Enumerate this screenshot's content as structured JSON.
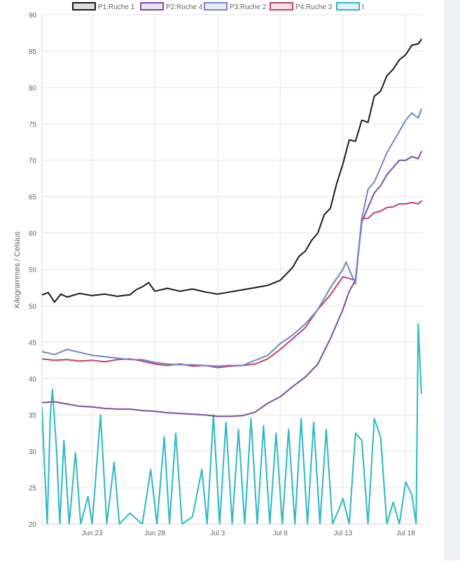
{
  "chart_data": {
    "type": "line",
    "title": "",
    "xlabel": "",
    "ylabel": "Kilogrammes  / Celsius",
    "ylim": [
      20,
      90
    ],
    "yticks": [
      20,
      25,
      30,
      35,
      40,
      45,
      50,
      55,
      60,
      65,
      70,
      75,
      80,
      85,
      90
    ],
    "xlim": [
      "2023-06-18",
      "2023-07-18T09:00"
    ],
    "xtick_labels": [
      {
        "date": "2023-06-22",
        "label": "Jun 23"
      },
      {
        "date": "2023-06-27",
        "label": "Jun 28"
      },
      {
        "date": "2023-07-02",
        "label": "Jul 3"
      },
      {
        "date": "2023-07-07",
        "label": "Jul 8"
      },
      {
        "date": "2023-07-12",
        "label": "Jul 13"
      },
      {
        "date": "2023-07-17",
        "label": "Jul 18"
      }
    ],
    "grid": true,
    "legend_position": "top",
    "series": [
      {
        "name": "P1:Ruche 1",
        "color": "#1a1a1a",
        "points": [
          [
            "2023-06-18",
            51.5
          ],
          [
            "2023-06-18T12:00",
            51.8
          ],
          [
            "2023-06-19",
            50.5
          ],
          [
            "2023-06-19T12:00",
            51.6
          ],
          [
            "2023-06-20",
            51.2
          ],
          [
            "2023-06-21",
            51.7
          ],
          [
            "2023-06-22",
            51.4
          ],
          [
            "2023-06-23",
            51.6
          ],
          [
            "2023-06-24",
            51.3
          ],
          [
            "2023-06-25",
            51.5
          ],
          [
            "2023-06-25T12:00",
            52.2
          ],
          [
            "2023-06-26",
            52.6
          ],
          [
            "2023-06-26T12:00",
            53.2
          ],
          [
            "2023-06-27",
            52.0
          ],
          [
            "2023-06-28",
            52.4
          ],
          [
            "2023-06-29",
            52.0
          ],
          [
            "2023-06-30",
            52.3
          ],
          [
            "2023-07-01",
            51.9
          ],
          [
            "2023-07-02",
            51.6
          ],
          [
            "2023-07-03",
            51.9
          ],
          [
            "2023-07-04",
            52.2
          ],
          [
            "2023-07-05",
            52.5
          ],
          [
            "2023-07-06",
            52.8
          ],
          [
            "2023-07-07",
            53.5
          ],
          [
            "2023-07-08",
            55.3
          ],
          [
            "2023-07-08T12:00",
            56.8
          ],
          [
            "2023-07-09",
            57.5
          ],
          [
            "2023-07-09T12:00",
            59.0
          ],
          [
            "2023-07-10",
            60.0
          ],
          [
            "2023-07-10T12:00",
            62.5
          ],
          [
            "2023-07-11",
            63.4
          ],
          [
            "2023-07-11T12:00",
            66.8
          ],
          [
            "2023-07-12",
            69.5
          ],
          [
            "2023-07-12T12:00",
            72.8
          ],
          [
            "2023-07-13",
            72.6
          ],
          [
            "2023-07-13T12:00",
            75.5
          ],
          [
            "2023-07-14",
            75.2
          ],
          [
            "2023-07-14T12:00",
            78.8
          ],
          [
            "2023-07-15",
            79.5
          ],
          [
            "2023-07-15T12:00",
            81.6
          ],
          [
            "2023-07-16",
            82.5
          ],
          [
            "2023-07-16T12:00",
            83.8
          ],
          [
            "2023-07-17",
            84.5
          ],
          [
            "2023-07-17T12:00",
            85.8
          ],
          [
            "2023-07-18",
            86.0
          ],
          [
            "2023-07-18T06:00",
            86.6
          ]
        ]
      },
      {
        "name": "P2:Ruche 4",
        "color": "#7b4ea6",
        "points": [
          [
            "2023-06-18",
            36.7
          ],
          [
            "2023-06-19",
            36.8
          ],
          [
            "2023-06-20",
            36.5
          ],
          [
            "2023-06-21",
            36.2
          ],
          [
            "2023-06-22",
            36.1
          ],
          [
            "2023-06-23",
            35.9
          ],
          [
            "2023-06-24",
            35.8
          ],
          [
            "2023-06-25",
            35.8
          ],
          [
            "2023-06-26",
            35.6
          ],
          [
            "2023-06-27",
            35.5
          ],
          [
            "2023-06-28",
            35.3
          ],
          [
            "2023-06-29",
            35.2
          ],
          [
            "2023-06-30",
            35.1
          ],
          [
            "2023-07-01",
            35.0
          ],
          [
            "2023-07-02",
            34.8
          ],
          [
            "2023-07-03",
            34.8
          ],
          [
            "2023-07-04",
            34.9
          ],
          [
            "2023-07-05",
            35.4
          ],
          [
            "2023-07-06",
            36.6
          ],
          [
            "2023-07-07",
            37.5
          ],
          [
            "2023-07-08",
            38.9
          ],
          [
            "2023-07-09",
            40.2
          ],
          [
            "2023-07-10",
            42.0
          ],
          [
            "2023-07-11",
            45.5
          ],
          [
            "2023-07-12",
            49.5
          ],
          [
            "2023-07-12T12:00",
            52.0
          ],
          [
            "2023-07-13",
            53.5
          ],
          [
            "2023-07-13T12:00",
            61.5
          ],
          [
            "2023-07-14",
            63.5
          ],
          [
            "2023-07-14T12:00",
            65.5
          ],
          [
            "2023-07-15",
            66.5
          ],
          [
            "2023-07-15T12:00",
            68.0
          ],
          [
            "2023-07-16",
            69.0
          ],
          [
            "2023-07-16T12:00",
            70.0
          ],
          [
            "2023-07-17",
            70.0
          ],
          [
            "2023-07-17T12:00",
            70.5
          ],
          [
            "2023-07-18",
            70.2
          ],
          [
            "2023-07-18T06:00",
            71.2
          ]
        ]
      },
      {
        "name": "P3:Ruche 2",
        "color": "#6b87d6",
        "points": [
          [
            "2023-06-18",
            43.7
          ],
          [
            "2023-06-19",
            43.3
          ],
          [
            "2023-06-20",
            44.0
          ],
          [
            "2023-06-21",
            43.6
          ],
          [
            "2023-06-22",
            43.2
          ],
          [
            "2023-06-23",
            43.0
          ],
          [
            "2023-06-24",
            42.8
          ],
          [
            "2023-06-25",
            42.6
          ],
          [
            "2023-06-26",
            42.6
          ],
          [
            "2023-06-27",
            42.2
          ],
          [
            "2023-06-28",
            42.0
          ],
          [
            "2023-06-29",
            41.9
          ],
          [
            "2023-06-30",
            41.9
          ],
          [
            "2023-07-01",
            41.8
          ],
          [
            "2023-07-02",
            41.7
          ],
          [
            "2023-07-03",
            41.8
          ],
          [
            "2023-07-04",
            41.8
          ],
          [
            "2023-07-05",
            42.5
          ],
          [
            "2023-07-06",
            43.2
          ],
          [
            "2023-07-07",
            44.8
          ],
          [
            "2023-07-08",
            46.0
          ],
          [
            "2023-07-09",
            47.5
          ],
          [
            "2023-07-10",
            49.5
          ],
          [
            "2023-07-11",
            52.5
          ],
          [
            "2023-07-12",
            55.0
          ],
          [
            "2023-07-12T06:00",
            56.0
          ],
          [
            "2023-07-13",
            53.0
          ],
          [
            "2023-07-13T12:00",
            62.0
          ],
          [
            "2023-07-14",
            66.0
          ],
          [
            "2023-07-14T12:00",
            67.0
          ],
          [
            "2023-07-15",
            69.0
          ],
          [
            "2023-07-15T12:00",
            71.0
          ],
          [
            "2023-07-16",
            72.5
          ],
          [
            "2023-07-16T12:00",
            74.0
          ],
          [
            "2023-07-17",
            75.5
          ],
          [
            "2023-07-17T12:00",
            76.5
          ],
          [
            "2023-07-18",
            75.8
          ],
          [
            "2023-07-18T06:00",
            77.0
          ]
        ]
      },
      {
        "name": "P4:Ruche 3",
        "color": "#c9405f",
        "points": [
          [
            "2023-06-18",
            42.7
          ],
          [
            "2023-06-19",
            42.5
          ],
          [
            "2023-06-20",
            42.6
          ],
          [
            "2023-06-21",
            42.4
          ],
          [
            "2023-06-22",
            42.5
          ],
          [
            "2023-06-23",
            42.3
          ],
          [
            "2023-06-24",
            42.6
          ],
          [
            "2023-06-25",
            42.7
          ],
          [
            "2023-06-26",
            42.4
          ],
          [
            "2023-06-27",
            42.0
          ],
          [
            "2023-06-28",
            41.8
          ],
          [
            "2023-06-29",
            42.0
          ],
          [
            "2023-06-30",
            41.7
          ],
          [
            "2023-07-01",
            41.8
          ],
          [
            "2023-07-02",
            41.5
          ],
          [
            "2023-07-03",
            41.7
          ],
          [
            "2023-07-04",
            41.8
          ],
          [
            "2023-07-05",
            42.0
          ],
          [
            "2023-07-06",
            42.7
          ],
          [
            "2023-07-07",
            44.0
          ],
          [
            "2023-07-08",
            45.5
          ],
          [
            "2023-07-09",
            47.0
          ],
          [
            "2023-07-10",
            49.5
          ],
          [
            "2023-07-11",
            51.5
          ],
          [
            "2023-07-12",
            54.0
          ],
          [
            "2023-07-13",
            53.5
          ],
          [
            "2023-07-13T12:00",
            62.0
          ],
          [
            "2023-07-14",
            62.0
          ],
          [
            "2023-07-14T12:00",
            62.8
          ],
          [
            "2023-07-15",
            63.0
          ],
          [
            "2023-07-15T12:00",
            63.5
          ],
          [
            "2023-07-16",
            63.6
          ],
          [
            "2023-07-16T12:00",
            64.0
          ],
          [
            "2023-07-17",
            64.0
          ],
          [
            "2023-07-17T12:00",
            64.2
          ],
          [
            "2023-07-18",
            64.0
          ],
          [
            "2023-07-18T06:00",
            64.4
          ]
        ]
      },
      {
        "name": "t",
        "color": "#2bb8c7",
        "points": [
          [
            "2023-06-18",
            36.0
          ],
          [
            "2023-06-18T04:00",
            29.0
          ],
          [
            "2023-06-18T10:00",
            20.0
          ],
          [
            "2023-06-18T16:00",
            35.0
          ],
          [
            "2023-06-18T20:00",
            38.5
          ],
          [
            "2023-06-19T04:00",
            30.0
          ],
          [
            "2023-06-19T10:00",
            20.0
          ],
          [
            "2023-06-19T18:00",
            31.5
          ],
          [
            "2023-06-20T04:00",
            20.0
          ],
          [
            "2023-06-20T16:00",
            29.8
          ],
          [
            "2023-06-21T02:00",
            20.0
          ],
          [
            "2023-06-21T16:00",
            23.8
          ],
          [
            "2023-06-22",
            20.0
          ],
          [
            "2023-06-22T16:00",
            35.0
          ],
          [
            "2023-06-23T04:00",
            20.0
          ],
          [
            "2023-06-23T18:00",
            28.5
          ],
          [
            "2023-06-24T04:00",
            20.0
          ],
          [
            "2023-06-25",
            21.5
          ],
          [
            "2023-06-26",
            20.0
          ],
          [
            "2023-06-26T16:00",
            27.5
          ],
          [
            "2023-06-27T04:00",
            20.0
          ],
          [
            "2023-06-27T18:00",
            32.0
          ],
          [
            "2023-06-28T04:00",
            20.0
          ],
          [
            "2023-06-28T16:00",
            32.5
          ],
          [
            "2023-06-29T04:00",
            20.0
          ],
          [
            "2023-06-30",
            21.0
          ],
          [
            "2023-06-30T18:00",
            27.5
          ],
          [
            "2023-07-01T04:00",
            20.0
          ],
          [
            "2023-07-01T16:00",
            35.0
          ],
          [
            "2023-07-02T04:00",
            20.0
          ],
          [
            "2023-07-02T16:00",
            34.0
          ],
          [
            "2023-07-03T04:00",
            20.0
          ],
          [
            "2023-07-03T16:00",
            33.0
          ],
          [
            "2023-07-04T04:00",
            20.0
          ],
          [
            "2023-07-04T16:00",
            34.5
          ],
          [
            "2023-07-05T04:00",
            20.0
          ],
          [
            "2023-07-05T16:00",
            33.5
          ],
          [
            "2023-07-06T04:00",
            20.0
          ],
          [
            "2023-07-06T16:00",
            32.5
          ],
          [
            "2023-07-07T04:00",
            20.0
          ],
          [
            "2023-07-07T16:00",
            33.0
          ],
          [
            "2023-07-08T04:00",
            20.0
          ],
          [
            "2023-07-08T16:00",
            34.5
          ],
          [
            "2023-07-09T04:00",
            20.0
          ],
          [
            "2023-07-09T16:00",
            34.0
          ],
          [
            "2023-07-10T04:00",
            20.0
          ],
          [
            "2023-07-10T16:00",
            33.0
          ],
          [
            "2023-07-11T04:00",
            20.0
          ],
          [
            "2023-07-11T16:00",
            22.0
          ],
          [
            "2023-07-12",
            23.5
          ],
          [
            "2023-07-12T12:00",
            20.0
          ],
          [
            "2023-07-13",
            32.5
          ],
          [
            "2023-07-13T12:00",
            31.5
          ],
          [
            "2023-07-14",
            20.0
          ],
          [
            "2023-07-14T12:00",
            34.5
          ],
          [
            "2023-07-15",
            32.0
          ],
          [
            "2023-07-15T12:00",
            20.0
          ],
          [
            "2023-07-16",
            23.0
          ],
          [
            "2023-07-16T12:00",
            20.0
          ],
          [
            "2023-07-17",
            25.8
          ],
          [
            "2023-07-17T12:00",
            24.0
          ],
          [
            "2023-07-17T20:00",
            20.0
          ],
          [
            "2023-07-18",
            47.5
          ],
          [
            "2023-07-18T06:00",
            38.0
          ]
        ]
      }
    ]
  }
}
